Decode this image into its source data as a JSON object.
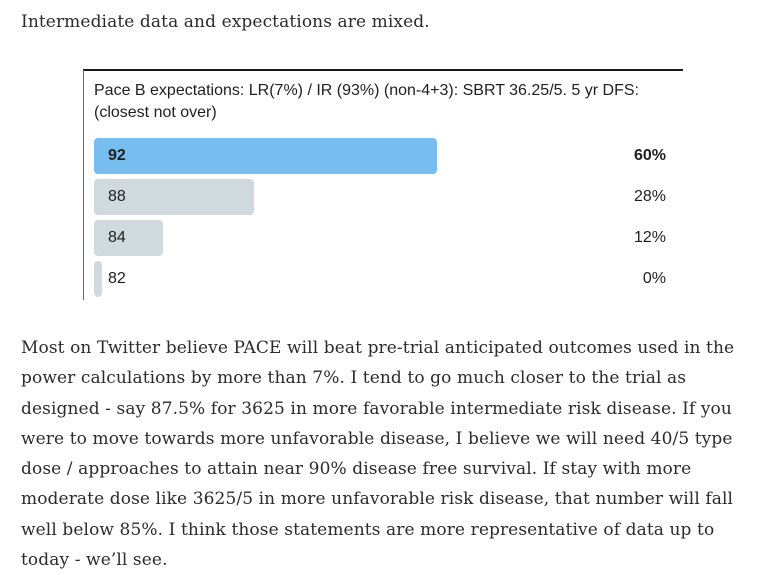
{
  "intro_text": "Intermediate data and expectations are mixed.",
  "poll": {
    "question": "Pace B expectations: LR(7%) / IR (93%) (non-4+3): SBRT 36.25/5. 5 yr DFS: (closest not over)",
    "options": [
      {
        "label": "92",
        "percent_text": "60%",
        "percent": 60,
        "winner": true
      },
      {
        "label": "88",
        "percent_text": "28%",
        "percent": 28,
        "winner": false
      },
      {
        "label": "84",
        "percent_text": "12%",
        "percent": 12,
        "winner": false
      },
      {
        "label": "82",
        "percent_text": "0%",
        "percent": 0,
        "winner": false
      }
    ],
    "colors": {
      "winner_bar": "#78bdf0",
      "other_bar": "#cfd9de"
    }
  },
  "body_text": "Most on Twitter believe PACE will beat pre-trial anticipated outcomes used in the power calculations by more than 7%. I tend to go much closer to the trial as designed - say 87.5% for 3625 in more favorable intermediate risk disease. If you were to move towards more unfavorable disease, I believe we will need 40/5 type dose / approaches to attain near 90% disease free survival. If stay with more moderate dose like 3625/5 in more unfavorable risk disease, that number will fall well below 85%. I think those statements are more representative of data up to today - we’ll see."
}
